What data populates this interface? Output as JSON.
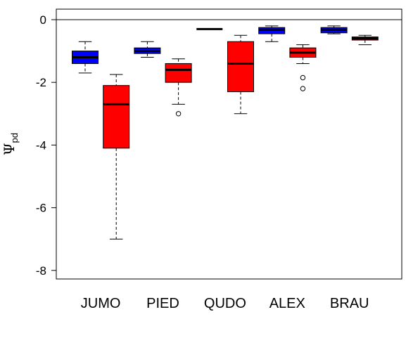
{
  "chart_data": {
    "type": "boxplot",
    "title": "",
    "xlabel": "",
    "ylabel_symbol": "Ψ",
    "ylabel_subscript": "pd",
    "ylim": [
      -8.3,
      0.3
    ],
    "yticks": [
      0,
      -2,
      -4,
      -6,
      -8
    ],
    "ytick_labels": [
      "0",
      "-2",
      "-4",
      "-6",
      "-8"
    ],
    "reference_line": 0,
    "grid": false,
    "legend": "none",
    "colors": {
      "group_a": "#0000ff",
      "group_b": "#ff0000"
    },
    "categories": [
      "JUMO",
      "PIED",
      "QUDO",
      "ALEX",
      "BRAU"
    ],
    "boxes": [
      {
        "category": "JUMO",
        "group": "group_a",
        "whisker_low": -1.7,
        "q1": -1.4,
        "median": -1.2,
        "q3": -1.0,
        "whisker_high": -0.7,
        "outliers": []
      },
      {
        "category": "JUMO",
        "group": "group_b",
        "whisker_low": -7.0,
        "q1": -4.1,
        "median": -2.7,
        "q3": -2.1,
        "whisker_high": -1.75,
        "outliers": []
      },
      {
        "category": "PIED",
        "group": "group_a",
        "whisker_low": -1.2,
        "q1": -1.08,
        "median": -1.0,
        "q3": -0.9,
        "whisker_high": -0.7,
        "outliers": []
      },
      {
        "category": "PIED",
        "group": "group_b",
        "whisker_low": -2.7,
        "q1": -2.0,
        "median": -1.6,
        "q3": -1.4,
        "whisker_high": -1.25,
        "outliers": [
          -3.0
        ]
      },
      {
        "category": "QUDO",
        "group": "group_a",
        "whisker_low": -0.3,
        "q1": -0.3,
        "median": -0.3,
        "q3": -0.3,
        "whisker_high": -0.3,
        "outliers": []
      },
      {
        "category": "QUDO",
        "group": "group_b",
        "whisker_low": -3.0,
        "q1": -2.3,
        "median": -1.4,
        "q3": -0.7,
        "whisker_high": -0.5,
        "outliers": []
      },
      {
        "category": "ALEX",
        "group": "group_a",
        "whisker_low": -0.7,
        "q1": -0.45,
        "median": -0.32,
        "q3": -0.25,
        "whisker_high": -0.2,
        "outliers": []
      },
      {
        "category": "ALEX",
        "group": "group_b",
        "whisker_low": -1.4,
        "q1": -1.2,
        "median": -1.05,
        "q3": -0.9,
        "whisker_high": -0.8,
        "outliers": [
          -1.85,
          -2.2
        ]
      },
      {
        "category": "BRAU",
        "group": "group_a",
        "whisker_low": -0.45,
        "q1": -0.42,
        "median": -0.32,
        "q3": -0.25,
        "whisker_high": -0.2,
        "outliers": []
      },
      {
        "category": "BRAU",
        "group": "group_b",
        "whisker_low": -0.8,
        "q1": -0.65,
        "median": -0.6,
        "q3": -0.55,
        "whisker_high": -0.5,
        "outliers": []
      }
    ]
  }
}
